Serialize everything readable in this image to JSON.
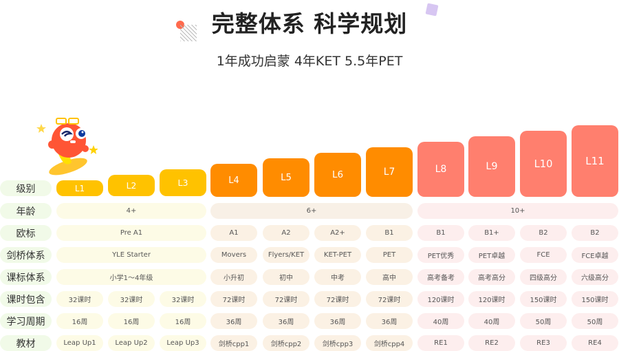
{
  "header": {
    "title": "完整体系 科学规划",
    "subtitle": "1年成功启蒙  4年KET  5.5年PET"
  },
  "colors": {
    "level_group1": "#FFC200",
    "level_group2": "#FF8C00",
    "level_group3": "#FF7F6E",
    "label_bg": "#F1FAE8"
  },
  "levels": [
    "L1",
    "L2",
    "L3",
    "L4",
    "L5",
    "L6",
    "L7",
    "L8",
    "L9",
    "L10",
    "L11"
  ],
  "row_labels": [
    "级别",
    "年龄",
    "欧标",
    "剑桥体系",
    "课标体系",
    "课时包含",
    "学习周期",
    "教材"
  ],
  "age": [
    "4+",
    "6+",
    "10+"
  ],
  "cefr": {
    "group1": "Pre A1",
    "rest": [
      "A1",
      "A2",
      "A2+",
      "B1",
      "B1",
      "B1+",
      "B2",
      "B2"
    ]
  },
  "cambridge": {
    "group1": "YLE Starter",
    "rest": [
      "Movers",
      "Flyers/KET",
      "KET-PET",
      "PET",
      "PET优秀",
      "PET卓越",
      "FCE",
      "FCE卓越"
    ]
  },
  "curriculum": {
    "group1": "小学1～4年级",
    "rest": [
      "小升初",
      "初中",
      "中考",
      "高中",
      "高考备考",
      "高考高分",
      "四级高分",
      "六级高分"
    ]
  },
  "hours": [
    "32课时",
    "32课时",
    "32课时",
    "72课时",
    "72课时",
    "72课时",
    "72课时",
    "120课时",
    "120课时",
    "150课时",
    "150课时"
  ],
  "weeks": [
    "16周",
    "16周",
    "16周",
    "36周",
    "36周",
    "36周",
    "36周",
    "40周",
    "40周",
    "50周",
    "50周"
  ],
  "textbooks": [
    "Leap Up1",
    "Leap Up2",
    "Leap Up3",
    "剑桥cpp1",
    "剑桥cpp2",
    "剑桥cpp3",
    "剑桥cpp4",
    "RE1",
    "RE2",
    "RE3",
    "RE4"
  ]
}
